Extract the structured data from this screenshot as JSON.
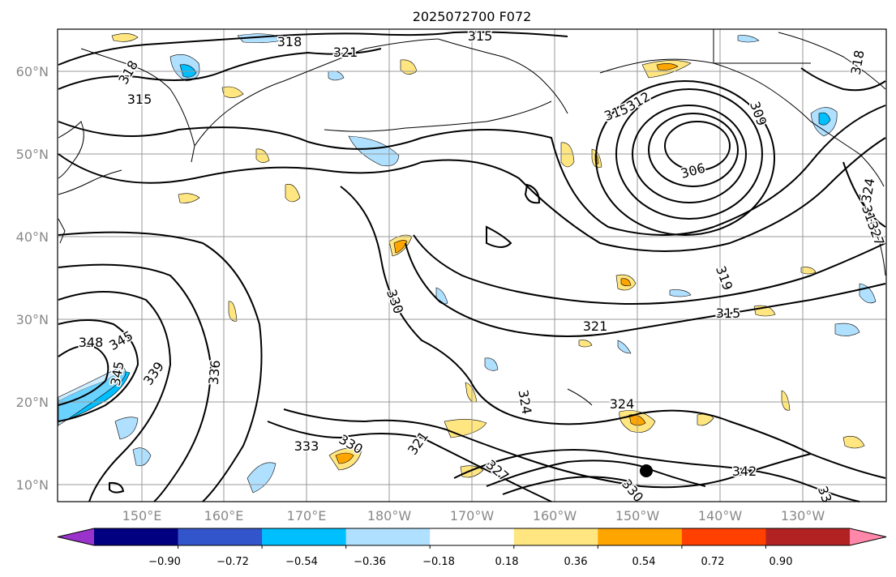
{
  "title": "2025072700 F072",
  "lat_labels": [
    "60°N",
    "50°N",
    "40°N",
    "30°N",
    "20°N",
    "10°N"
  ],
  "lon_labels": [
    "150°E",
    "160°E",
    "170°E",
    "180°W",
    "170°W",
    "160°W",
    "150°W",
    "140°W",
    "130°W"
  ],
  "colorbar": {
    "ticks": [
      "−0.90",
      "−0.72",
      "−0.54",
      "−0.36",
      "−0.18",
      "0.18",
      "0.36",
      "0.54",
      "0.72",
      "0.90"
    ],
    "colors": [
      "#9933cc",
      "#000080",
      "#3355cc",
      "#00bfff",
      "#b0e0ff",
      "#ffffff",
      "#ffe680",
      "#ffa500",
      "#ff4000",
      "#b22222",
      "#ff88aa"
    ]
  },
  "contour_labels": [
    "318",
    "315",
    "321",
    "318",
    "315",
    "318",
    "315",
    "312",
    "309",
    "306",
    "318",
    "324",
    "327",
    "319",
    "315",
    "321",
    "342",
    "348",
    "345",
    "345",
    "339",
    "336",
    "333",
    "330",
    "330",
    "324",
    "324",
    "321",
    "327",
    "330",
    "342",
    "33"
  ],
  "marker": "storm-position"
}
